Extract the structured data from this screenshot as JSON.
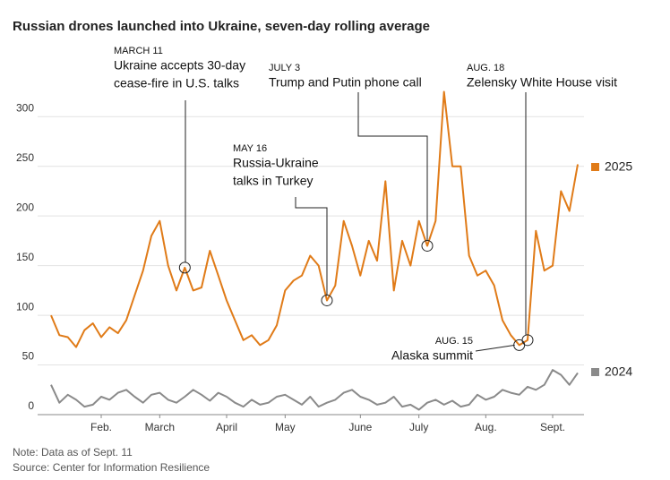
{
  "chart_data": {
    "type": "line",
    "title": "Russian drones launched into Ukraine, seven-day rolling average",
    "categories": [
      null,
      null,
      null,
      null,
      null,
      null,
      "Feb.",
      null,
      null,
      null,
      null,
      null,
      null,
      "March",
      null,
      null,
      null,
      null,
      null,
      null,
      null,
      "April",
      null,
      null,
      null,
      null,
      null,
      null,
      "May",
      null,
      null,
      null,
      null,
      null,
      null,
      null,
      null,
      "June",
      null,
      null,
      null,
      null,
      null,
      null,
      "July",
      null,
      null,
      null,
      null,
      null,
      null,
      null,
      "Aug.",
      null,
      null,
      null,
      null,
      null,
      null,
      null,
      "Sept.",
      null,
      null,
      null
    ],
    "series": [
      {
        "name": "2025",
        "color": "#e07b18",
        "values": [
          100,
          80,
          78,
          68,
          85,
          92,
          78,
          88,
          82,
          95,
          120,
          145,
          180,
          195,
          150,
          125,
          148,
          125,
          128,
          165,
          140,
          115,
          95,
          75,
          80,
          70,
          75,
          90,
          125,
          135,
          140,
          160,
          150,
          115,
          130,
          195,
          170,
          140,
          175,
          155,
          235,
          125,
          175,
          150,
          195,
          170,
          195,
          325,
          250,
          250,
          160,
          140,
          145,
          130,
          95,
          80,
          70,
          75,
          185,
          145,
          150,
          225,
          205,
          252
        ]
      },
      {
        "name": "2024",
        "color": "#8a8a8a",
        "values": [
          30,
          12,
          20,
          15,
          8,
          10,
          18,
          15,
          22,
          25,
          18,
          12,
          20,
          22,
          15,
          12,
          18,
          25,
          20,
          14,
          22,
          18,
          12,
          8,
          15,
          10,
          12,
          18,
          20,
          15,
          10,
          18,
          8,
          12,
          15,
          22,
          25,
          18,
          15,
          10,
          12,
          18,
          8,
          10,
          5,
          12,
          15,
          10,
          14,
          8,
          10,
          20,
          15,
          18,
          25,
          22,
          20,
          28,
          25,
          30,
          45,
          40,
          30,
          42
        ]
      }
    ],
    "ylim": [
      0,
      330
    ],
    "yticks": [
      0,
      50,
      100,
      150,
      200,
      250,
      300
    ],
    "grid": true,
    "annotations": [
      {
        "date": "MARCH 11",
        "lines": [
          "Ukraine accepts 30-day",
          "cease-fire in U.S. talks"
        ]
      },
      {
        "date": "MAY 16",
        "lines": [
          "Russia-Ukraine",
          "talks in Turkey"
        ]
      },
      {
        "date": "JULY 3",
        "lines": [
          "Trump and Putin phone call"
        ]
      },
      {
        "date": "AUG. 18",
        "lines": [
          "Zelensky White House visit"
        ]
      },
      {
        "date": "AUG. 15",
        "lines": [
          "Alaska summit"
        ]
      }
    ],
    "note": "Note: Data as of Sept. 11",
    "source": "Source: Center for Information Resilience"
  }
}
